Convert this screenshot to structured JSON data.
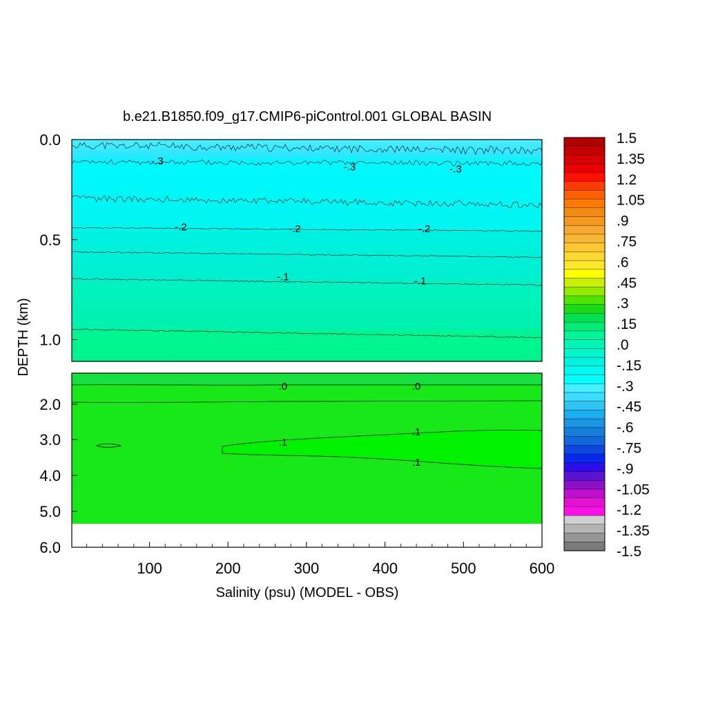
{
  "chart_data": {
    "type": "heatmap",
    "title": "b.e21.B1850.f09_g17.CMIP6-piControl.001 GLOBAL BASIN",
    "xlabel": "Salinity (psu) (MODEL - OBS)",
    "ylabel": "DEPTH (km)",
    "xlim": [
      1,
      600
    ],
    "x_ticks": [
      "100",
      "200",
      "300",
      "400",
      "500",
      "600"
    ],
    "upper_panel": {
      "ylim": [
        0.0,
        1.1
      ],
      "y_ticks": [
        "0.0",
        "0.5",
        "1.0"
      ]
    },
    "lower_panel": {
      "ylim": [
        1.1,
        6.0
      ],
      "y_ticks": [
        "2.0",
        "3.0",
        "4.0",
        "5.0",
        "6.0"
      ]
    },
    "contour_labels": [
      {
        "text": "-.3",
        "x": 110,
        "depth": 0.11
      },
      {
        "text": "-.3",
        "x": 355,
        "depth": 0.14
      },
      {
        "text": "-.3",
        "x": 490,
        "depth": 0.15
      },
      {
        "text": "-.2",
        "x": 140,
        "depth": 0.44
      },
      {
        "text": "-.2",
        "x": 285,
        "depth": 0.45
      },
      {
        "text": "-.2",
        "x": 450,
        "depth": 0.45
      },
      {
        "text": "-.1",
        "x": 270,
        "depth": 0.69
      },
      {
        "text": "-.1",
        "x": 445,
        "depth": 0.71
      },
      {
        "text": ".0",
        "x": 270,
        "depth": 1.5
      },
      {
        "text": ".0",
        "x": 440,
        "depth": 1.5
      },
      {
        "text": ".1",
        "x": 270,
        "depth": 3.1
      },
      {
        "text": ".1",
        "x": 440,
        "depth": 2.8
      },
      {
        "text": ".1",
        "x": 440,
        "depth": 3.65
      }
    ],
    "colorbar": {
      "labels": [
        "1.5",
        "1.35",
        "1.2",
        "1.05",
        ".9",
        ".75",
        ".6",
        ".45",
        ".3",
        ".15",
        ".0",
        "-.15",
        "-.3",
        "-.45",
        "-.6",
        "-.75",
        "-.9",
        "-1.05",
        "-1.2",
        "-1.35",
        "-1.5"
      ],
      "colors": [
        "#b00000",
        "#c40000",
        "#d80000",
        "#ea0000",
        "#ff1000",
        "#ff3c00",
        "#ff6000",
        "#ff7a00",
        "#f38a10",
        "#f59820",
        "#f7a830",
        "#f9b834",
        "#fbc832",
        "#fbd830",
        "#fde82a",
        "#ffff00",
        "#c8f000",
        "#96ea00",
        "#50e400",
        "#18dc18",
        "#00e050",
        "#00ea78",
        "#00f49a",
        "#00f6b6",
        "#00f6cc",
        "#00f4e0",
        "#00f8f0",
        "#00ffff",
        "#44f0ff",
        "#3cdcff",
        "#30c4f4",
        "#1caeec",
        "#1896e4",
        "#1480dc",
        "#1068dc",
        "#0c48e0",
        "#0828f0",
        "#2c10e8",
        "#5c14d4",
        "#8c10c8",
        "#bc10cc",
        "#e410d4",
        "#ff10e8",
        "#d0d0d0",
        "#b4b4b4",
        "#969696",
        "#7a7a7a"
      ]
    }
  }
}
